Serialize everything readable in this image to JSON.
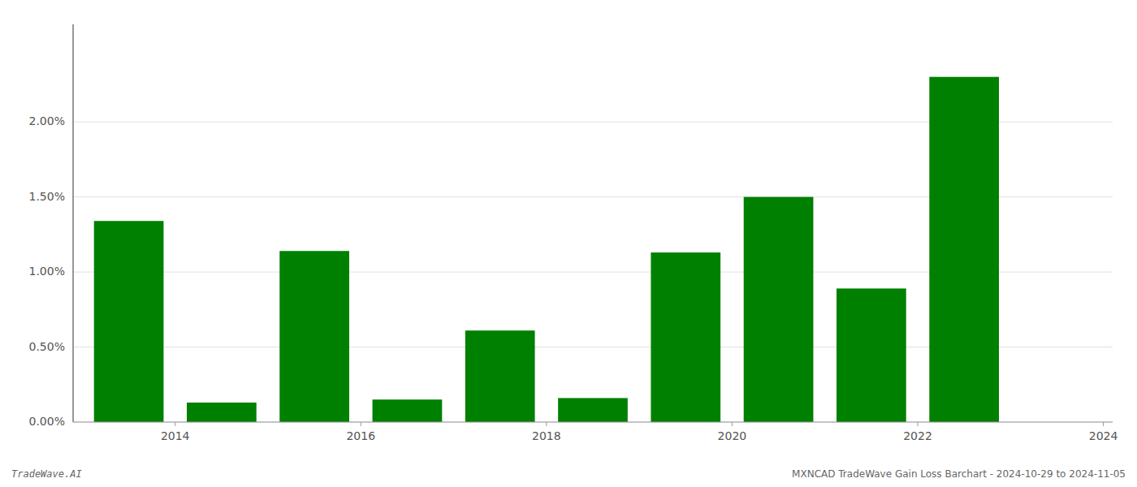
{
  "chart_data": {
    "type": "bar",
    "x": [
      2014,
      2015,
      2016,
      2017,
      2018,
      2019,
      2020,
      2021,
      2022,
      2023,
      2024
    ],
    "values": [
      1.34,
      0.13,
      1.14,
      0.15,
      0.61,
      0.16,
      1.13,
      1.5,
      0.89,
      2.3,
      0.0
    ],
    "color": "#008000",
    "xlim": [
      2013.4,
      2024.6
    ],
    "xticks": [
      {
        "value": 2014.5,
        "label": "2014"
      },
      {
        "value": 2016.5,
        "label": "2016"
      },
      {
        "value": 2018.5,
        "label": "2018"
      },
      {
        "value": 2020.5,
        "label": "2020"
      },
      {
        "value": 2022.5,
        "label": "2022"
      },
      {
        "value": 2024.5,
        "label": "2024"
      }
    ],
    "ylim": [
      0,
      2.65
    ],
    "yticks": [
      {
        "value": 0.0,
        "label": "0.00%"
      },
      {
        "value": 0.5,
        "label": "0.50%"
      },
      {
        "value": 1.0,
        "label": "1.00%"
      },
      {
        "value": 1.5,
        "label": "1.50%"
      },
      {
        "value": 2.0,
        "label": "2.00%"
      }
    ],
    "grid": true,
    "annotations": [
      "TradeWave.AI",
      "MXNCAD TradeWave Gain Loss Barchart - 2024-10-29 to 2024-11-05"
    ]
  }
}
